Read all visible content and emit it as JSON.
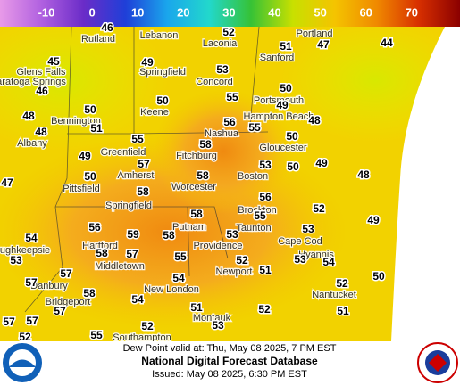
{
  "legend": {
    "ticks": [
      -10,
      0,
      10,
      20,
      30,
      40,
      50,
      60,
      70
    ],
    "colors": [
      "#e89ae8",
      "#b060e0",
      "#6a2cc8",
      "#1f3fd8",
      "#1aa6ec",
      "#22d8cc",
      "#36c236",
      "#c8e000",
      "#f4c400",
      "#f08a00",
      "#d83000",
      "#8b0000"
    ]
  },
  "places": [
    "Rutland",
    "Lebanon",
    "Laconia",
    "Portland",
    "Glens Falls",
    "Springfield",
    "Concord",
    "Sanford",
    "aratoga Springs",
    "Keene",
    "Portsmouth",
    "Bennington",
    "Hampton Beach",
    "Albany",
    "Nashua",
    "Greenfield",
    "Fitchburg",
    "Gloucester",
    "Amherst",
    "Boston",
    "Pittsfield",
    "Worcester",
    "Springfield",
    "Brockton",
    "Putnam",
    "Taunton",
    "Hartford",
    "Providence",
    "Cape Cod",
    "Hyannis",
    "ughkeepsie",
    "Middletown",
    "Newport",
    "Danbury",
    "New London",
    "Nantucket",
    "Bridgeport",
    "Montauk",
    "Southampton"
  ],
  "dew_points": [
    46,
    52,
    51,
    47,
    44,
    45,
    49,
    53,
    46,
    50,
    55,
    50,
    48,
    50,
    49,
    51,
    56,
    55,
    48,
    48,
    55,
    58,
    50,
    49,
    57,
    53,
    50,
    49,
    48,
    47,
    50,
    58,
    58,
    56,
    52,
    58,
    55,
    49,
    56,
    59,
    58,
    53,
    53,
    54,
    58,
    57,
    52,
    53,
    54,
    53,
    55,
    51,
    57,
    54,
    52,
    50,
    57,
    58,
    54,
    51,
    57,
    52,
    51,
    57,
    57,
    52,
    53,
    55,
    52
  ],
  "footer": {
    "valid": "Dew Point valid at: Thu, May 08 2025, 7 PM EST",
    "title": "National Digital Forecast Database",
    "issued": "Issued: May 08 2025, 6:30 PM EST"
  }
}
